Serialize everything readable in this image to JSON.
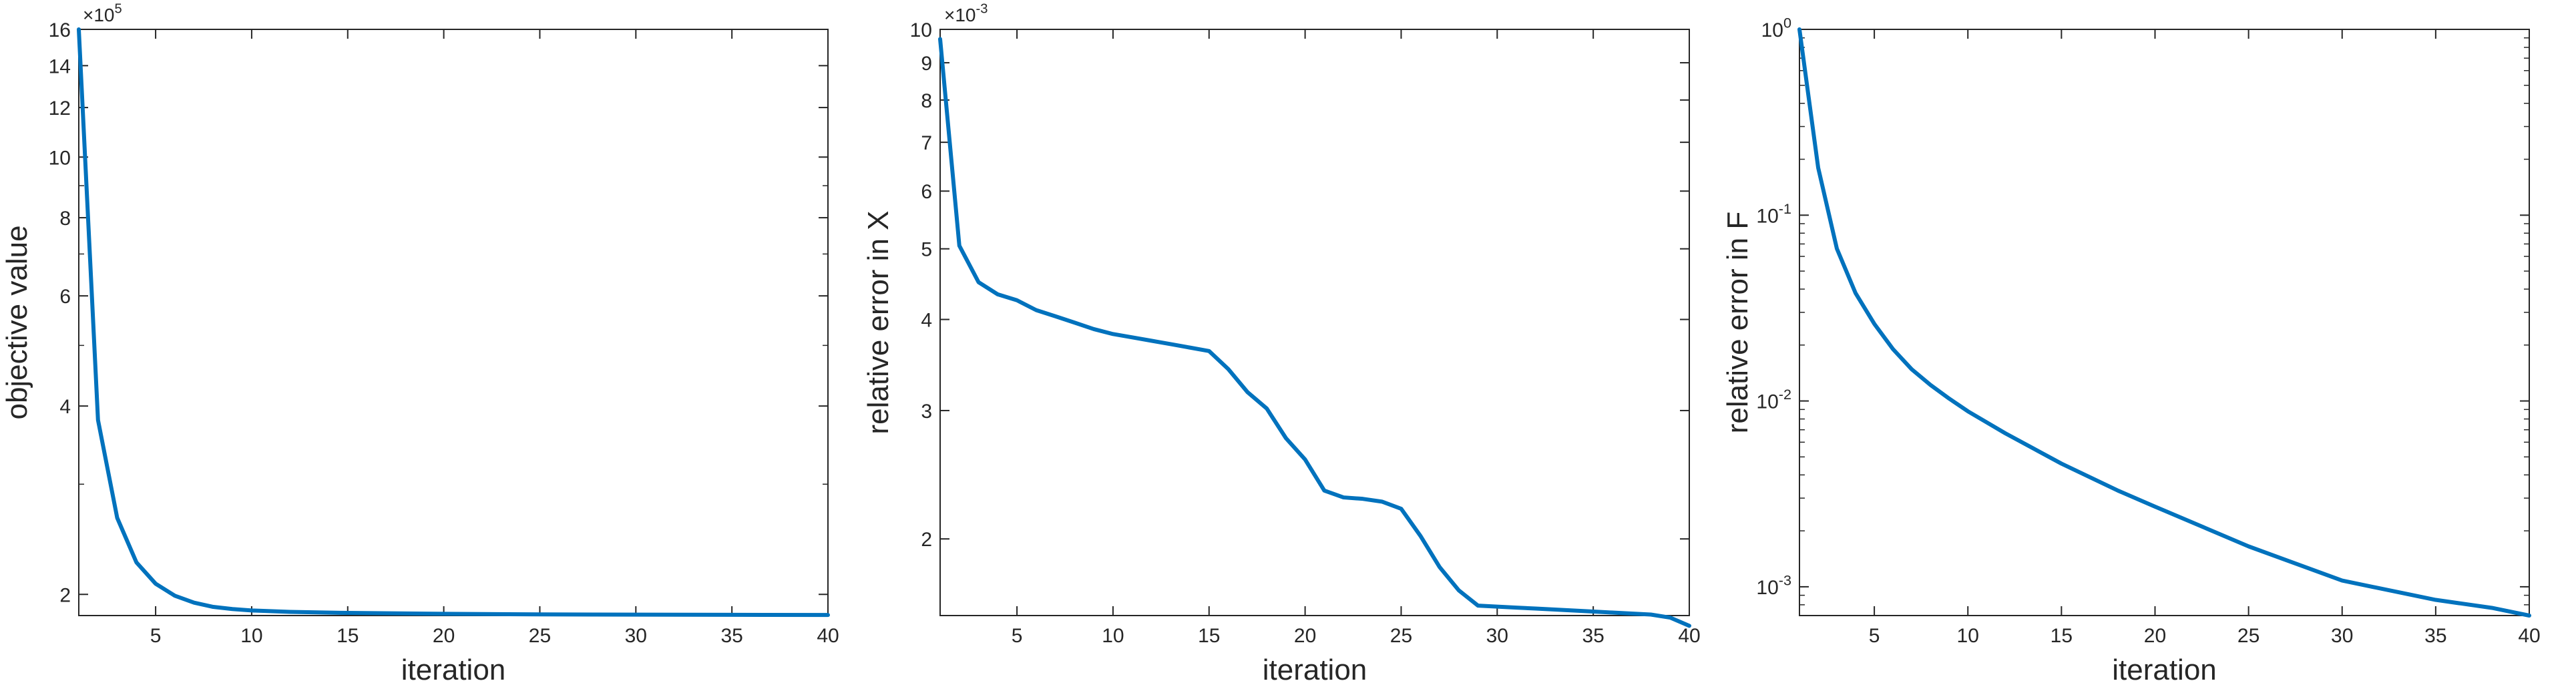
{
  "chart_data": [
    {
      "type": "line",
      "xlabel": "iteration",
      "ylabel": "objective value",
      "exponent_label": {
        "base": "×10",
        "exp": "5"
      },
      "yscale": "log",
      "xlim": [
        1,
        40
      ],
      "ylim": [
        1.85,
        16
      ],
      "xticks": [
        5,
        10,
        15,
        20,
        25,
        30,
        35,
        40
      ],
      "yticks": [
        2,
        4,
        6,
        8,
        10,
        12,
        14,
        16
      ],
      "ytick_labels": [
        "2",
        "4",
        "6",
        "8",
        "10",
        "12",
        "14",
        "16"
      ],
      "line_color": "#0072BD",
      "series": [
        {
          "x": [
            1,
            2,
            3,
            4,
            5,
            6,
            7,
            8,
            9,
            10,
            12,
            15,
            20,
            25,
            30,
            35,
            40
          ],
          "y": [
            16.0,
            3.8,
            2.65,
            2.25,
            2.08,
            1.99,
            1.94,
            1.91,
            1.895,
            1.885,
            1.875,
            1.868,
            1.862,
            1.858,
            1.856,
            1.855,
            1.854
          ]
        }
      ]
    },
    {
      "type": "line",
      "xlabel": "iteration",
      "ylabel": "relative error in X",
      "exponent_label": {
        "base": "×10",
        "exp": "-3"
      },
      "yscale": "log",
      "xlim": [
        1,
        40
      ],
      "ylim": [
        1.57,
        10
      ],
      "xticks": [
        5,
        10,
        15,
        20,
        25,
        30,
        35,
        40
      ],
      "yticks": [
        2,
        3,
        4,
        5,
        6,
        7,
        8,
        9,
        10
      ],
      "ytick_labels": [
        "2",
        "3",
        "4",
        "5",
        "6",
        "7",
        "8",
        "9",
        "10"
      ],
      "line_color": "#0072BD",
      "series": [
        {
          "x": [
            1,
            2,
            3,
            4,
            5,
            6,
            7,
            8,
            9,
            10,
            11,
            12,
            13,
            14,
            15,
            16,
            17,
            18,
            19,
            20,
            21,
            22,
            23,
            24,
            25,
            26,
            27,
            28,
            29,
            30,
            31,
            32,
            33,
            34,
            35,
            36,
            37,
            38,
            39,
            40
          ],
          "y": [
            9.7,
            5.05,
            4.5,
            4.33,
            4.25,
            4.12,
            4.04,
            3.96,
            3.88,
            3.82,
            3.78,
            3.74,
            3.7,
            3.66,
            3.62,
            3.42,
            3.18,
            3.02,
            2.75,
            2.57,
            2.33,
            2.28,
            2.27,
            2.25,
            2.2,
            2.02,
            1.83,
            1.7,
            1.62,
            1.615,
            1.61,
            1.605,
            1.6,
            1.595,
            1.59,
            1.585,
            1.58,
            1.575,
            1.56,
            1.52
          ]
        }
      ]
    },
    {
      "type": "line",
      "xlabel": "iteration",
      "ylabel": "relative error in F",
      "yscale": "log",
      "xlim": [
        1,
        40
      ],
      "ylim": [
        0.0007,
        1
      ],
      "xticks": [
        5,
        10,
        15,
        20,
        25,
        30,
        35,
        40
      ],
      "yticks": [
        0.001,
        0.01,
        0.1,
        1
      ],
      "ytick_labels": [
        {
          "base": "10",
          "exp": "-3"
        },
        {
          "base": "10",
          "exp": "-2"
        },
        {
          "base": "10",
          "exp": "-1"
        },
        {
          "base": "10",
          "exp": "0"
        }
      ],
      "line_color": "#0072BD",
      "series": [
        {
          "x": [
            1,
            2,
            3,
            4,
            5,
            6,
            7,
            8,
            9,
            10,
            12,
            15,
            18,
            20,
            25,
            30,
            35,
            38,
            40
          ],
          "y": [
            1.0,
            0.18,
            0.066,
            0.038,
            0.026,
            0.019,
            0.0148,
            0.0122,
            0.0103,
            0.0088,
            0.0067,
            0.0046,
            0.0033,
            0.0027,
            0.00165,
            0.00108,
            0.00085,
            0.00077,
            0.0007
          ]
        }
      ]
    }
  ]
}
